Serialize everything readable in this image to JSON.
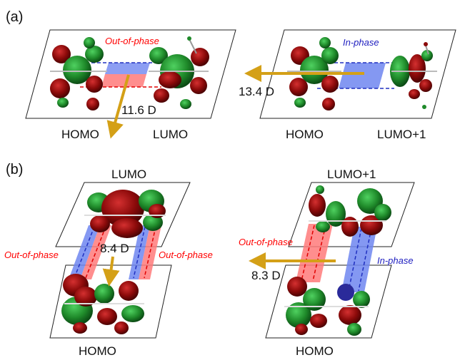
{
  "panel_a": {
    "label": "(a)",
    "left": {
      "phase_label": "Out-of-phase",
      "dipole": "11.6 D",
      "orbital_left": "HOMO",
      "orbital_right": "LUMO"
    },
    "right": {
      "phase_label": "In-phase",
      "dipole": "13.4 D",
      "orbital_left": "HOMO",
      "orbital_right": "LUMO+1"
    }
  },
  "panel_b": {
    "label": "(b)",
    "left": {
      "orbital_top": "LUMO",
      "orbital_bottom": "HOMO",
      "phase_label_left": "Out-of-phase",
      "phase_label_right": "Out-of-phase",
      "dipole": "8.4 D"
    },
    "right": {
      "orbital_top": "LUMO+1",
      "orbital_bottom": "HOMO",
      "phase_label_left": "Out-of-phase",
      "phase_label_right": "In-phase",
      "dipole": "8.3 D"
    }
  },
  "colors": {
    "out_of_phase": "#ff0000",
    "in_phase": "#2020c0",
    "arrow": "#d4a017",
    "lobe_red": "#8b0a0a",
    "lobe_green": "#1f8a2a"
  }
}
